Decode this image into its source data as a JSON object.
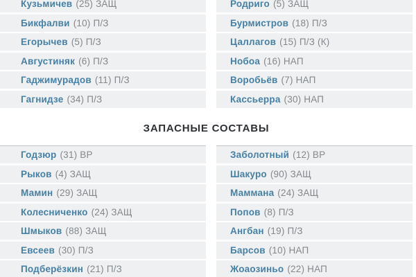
{
  "colors": {
    "player_link": "#4580a6",
    "player_meta": "#84888c",
    "row_background": "#eef0f1",
    "heading_text": "#2d3135"
  },
  "sections": {
    "starting": {
      "home_players": [
        {
          "name": "Кузьмичев",
          "number": 25,
          "position": "ЗАЩ"
        },
        {
          "name": "Бикфалви",
          "number": 10,
          "position": "П/З"
        },
        {
          "name": "Егорычев",
          "number": 5,
          "position": "П/З"
        },
        {
          "name": "Августиняк",
          "number": 6,
          "position": "П/З"
        },
        {
          "name": "Гаджимурадов",
          "number": 11,
          "position": "П/З"
        },
        {
          "name": "Гагнидзе",
          "number": 34,
          "position": "П/З"
        }
      ],
      "away_players": [
        {
          "name": "Родриго",
          "number": 5,
          "position": "ЗАЩ"
        },
        {
          "name": "Бурмистров",
          "number": 18,
          "position": "П/З"
        },
        {
          "name": "Цаллагов",
          "number": 15,
          "position": "П/З (К)"
        },
        {
          "name": "Нобоа",
          "number": 16,
          "position": "НАП"
        },
        {
          "name": "Воробьёв",
          "number": 7,
          "position": "НАП"
        },
        {
          "name": "Кассьерра",
          "number": 30,
          "position": "НАП"
        }
      ]
    },
    "substitutes": {
      "title": "ЗАПАСНЫЕ СОСТАВЫ",
      "home_players": [
        {
          "name": "Годзюр",
          "number": 31,
          "position": "ВР"
        },
        {
          "name": "Рыков",
          "number": 4,
          "position": "ЗАЩ"
        },
        {
          "name": "Мамин",
          "number": 29,
          "position": "ЗАЩ"
        },
        {
          "name": "Колесниченко",
          "number": 24,
          "position": "ЗАЩ"
        },
        {
          "name": "Шмыков",
          "number": 88,
          "position": "ЗАЩ"
        },
        {
          "name": "Евсеев",
          "number": 30,
          "position": "П/З"
        },
        {
          "name": "Подберёзкин",
          "number": 21,
          "position": "П/З"
        }
      ],
      "away_players": [
        {
          "name": "Заболотный",
          "number": 12,
          "position": "ВР"
        },
        {
          "name": "Шакуро",
          "number": 90,
          "position": "ЗАЩ"
        },
        {
          "name": "Маммана",
          "number": 24,
          "position": "ЗАЩ"
        },
        {
          "name": "Попов",
          "number": 8,
          "position": "П/З"
        },
        {
          "name": "Ангбан",
          "number": 19,
          "position": "П/З"
        },
        {
          "name": "Барсов",
          "number": 10,
          "position": "НАП"
        },
        {
          "name": "Жоаозиньо",
          "number": 22,
          "position": "НАП"
        }
      ]
    }
  }
}
